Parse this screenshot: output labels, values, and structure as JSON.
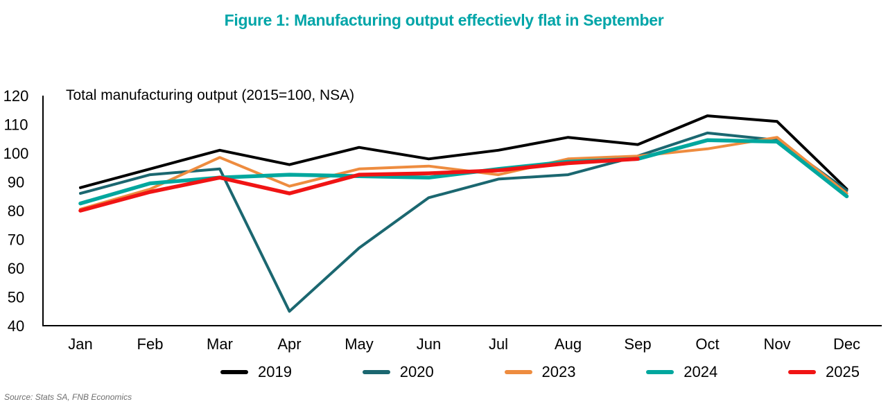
{
  "title": {
    "text": "Figure 1: Manufacturing output effectievly flat in September",
    "color": "#00A5A8"
  },
  "source": {
    "text": "Source: Stats SA, FNB Economics"
  },
  "chart_data": {
    "type": "line",
    "annotation": "Total manufacturing output (2015=100, NSA)",
    "categories": [
      "Jan",
      "Feb",
      "Mar",
      "Apr",
      "May",
      "Jun",
      "Jul",
      "Aug",
      "Sep",
      "Oct",
      "Nov",
      "Dec"
    ],
    "y_ticks": [
      120,
      110,
      100,
      90,
      80,
      70,
      60,
      50,
      40
    ],
    "ylim": [
      40,
      120
    ],
    "grid": false,
    "legend_position": "bottom",
    "axis_color": "#000000",
    "series": [
      {
        "name": "2019",
        "color": "#000000",
        "values": [
          88,
          94.5,
          101,
          96,
          102,
          98,
          101,
          105.5,
          103,
          113,
          111,
          87.5
        ]
      },
      {
        "name": "2020",
        "color": "#1B6770",
        "values": [
          86,
          92.5,
          94.5,
          45,
          67,
          84.5,
          91,
          92.5,
          99,
          107,
          104.5,
          87
        ]
      },
      {
        "name": "2023",
        "color": "#EE8C3F",
        "values": [
          80.5,
          87.5,
          98.5,
          88.5,
          94.5,
          95.5,
          92.5,
          98,
          99,
          101.5,
          105.5,
          86
        ]
      },
      {
        "name": "2024",
        "color": "#00A79E",
        "values": [
          82.5,
          89.5,
          91.5,
          92.5,
          92,
          91.5,
          94.5,
          97,
          98,
          104.5,
          104,
          85
        ]
      },
      {
        "name": "2025",
        "color": "#F01414",
        "values": [
          80,
          86.5,
          91.5,
          86,
          92.5,
          93,
          94,
          96.5,
          98,
          null,
          null,
          null
        ]
      }
    ]
  }
}
